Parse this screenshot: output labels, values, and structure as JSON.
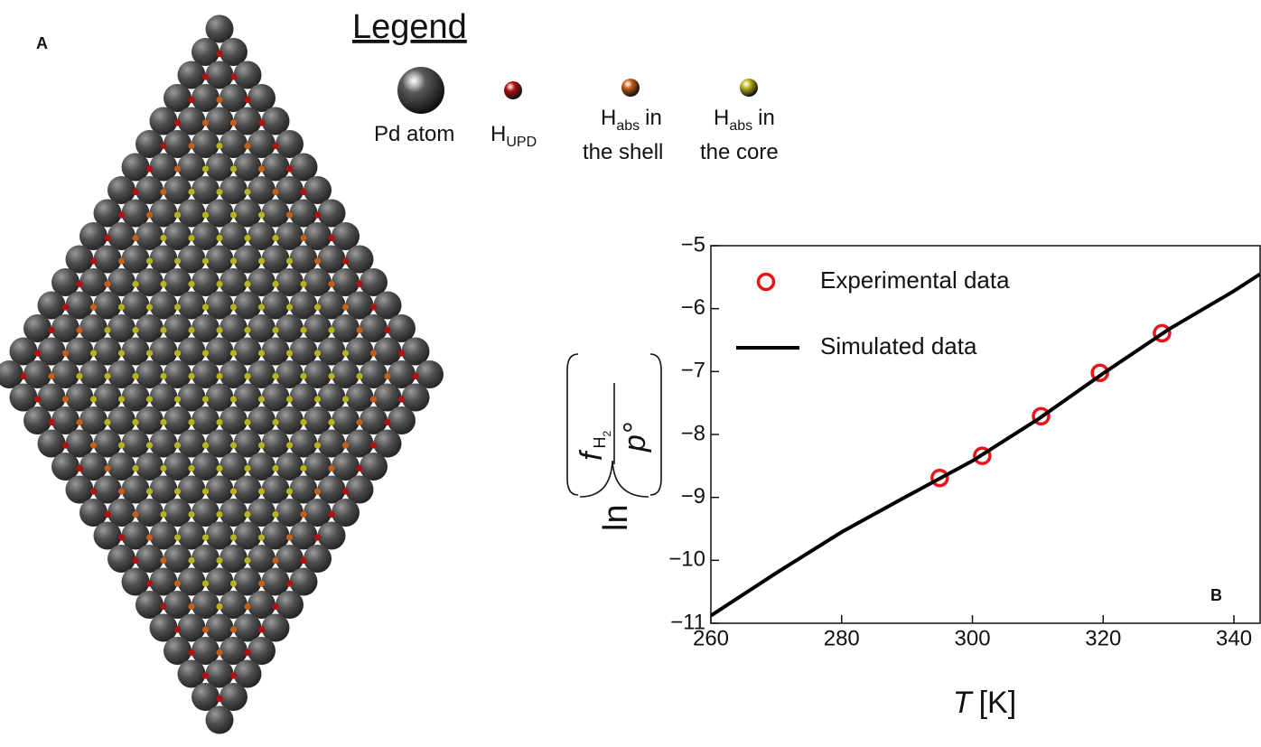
{
  "panel_a": {
    "label": "A",
    "legend": {
      "title": "Legend",
      "items": [
        {
          "label": "Pd atom",
          "color": "#5a5a5a"
        },
        {
          "symbol": "H",
          "subscript": "UPD",
          "color": "#b3100f"
        },
        {
          "symbol": "H",
          "subscript": "abs",
          "suffix": "in",
          "line2": "the shell",
          "color": "#c45f17"
        },
        {
          "symbol": "H",
          "subscript": "abs",
          "suffix": "in",
          "line2": "the core",
          "color": "#b8b21c"
        }
      ]
    }
  },
  "chart_data": {
    "type": "line",
    "panel_label": "B",
    "xlabel": {
      "symbol": "T",
      "unit": "[K]"
    },
    "ylabel": {
      "function": "ln",
      "numerator": "f",
      "subscript": "H",
      "subscript2": "2",
      "denominator": "p°"
    },
    "xlim": [
      260,
      344
    ],
    "ylim": [
      -11,
      -5
    ],
    "xticks": [
      260,
      280,
      300,
      320,
      340
    ],
    "yticks": [
      {
        "value": -5,
        "label": "−5"
      },
      {
        "value": -6,
        "label": "−6"
      },
      {
        "value": -7,
        "label": "−7"
      },
      {
        "value": -8,
        "label": "−8"
      },
      {
        "value": -9,
        "label": "−9"
      },
      {
        "value": -10,
        "label": "−10"
      },
      {
        "value": -11,
        "label": "−11"
      }
    ],
    "legend": "upper left",
    "series": [
      {
        "name": "Experimental data",
        "style": "markers",
        "color": "#e8141a",
        "x": [
          295,
          301.5,
          310.5,
          319.5,
          329
        ],
        "values": [
          -8.69,
          -8.34,
          -7.71,
          -7.02,
          -6.39
        ]
      },
      {
        "name": "Simulated data",
        "style": "line",
        "color": "#000000",
        "x": [
          260,
          270,
          280,
          290,
          300,
          310,
          320,
          330,
          340,
          344
        ],
        "values": [
          -10.88,
          -10.2,
          -9.55,
          -8.98,
          -8.42,
          -7.76,
          -7.03,
          -6.33,
          -5.72,
          -5.45
        ]
      }
    ]
  }
}
